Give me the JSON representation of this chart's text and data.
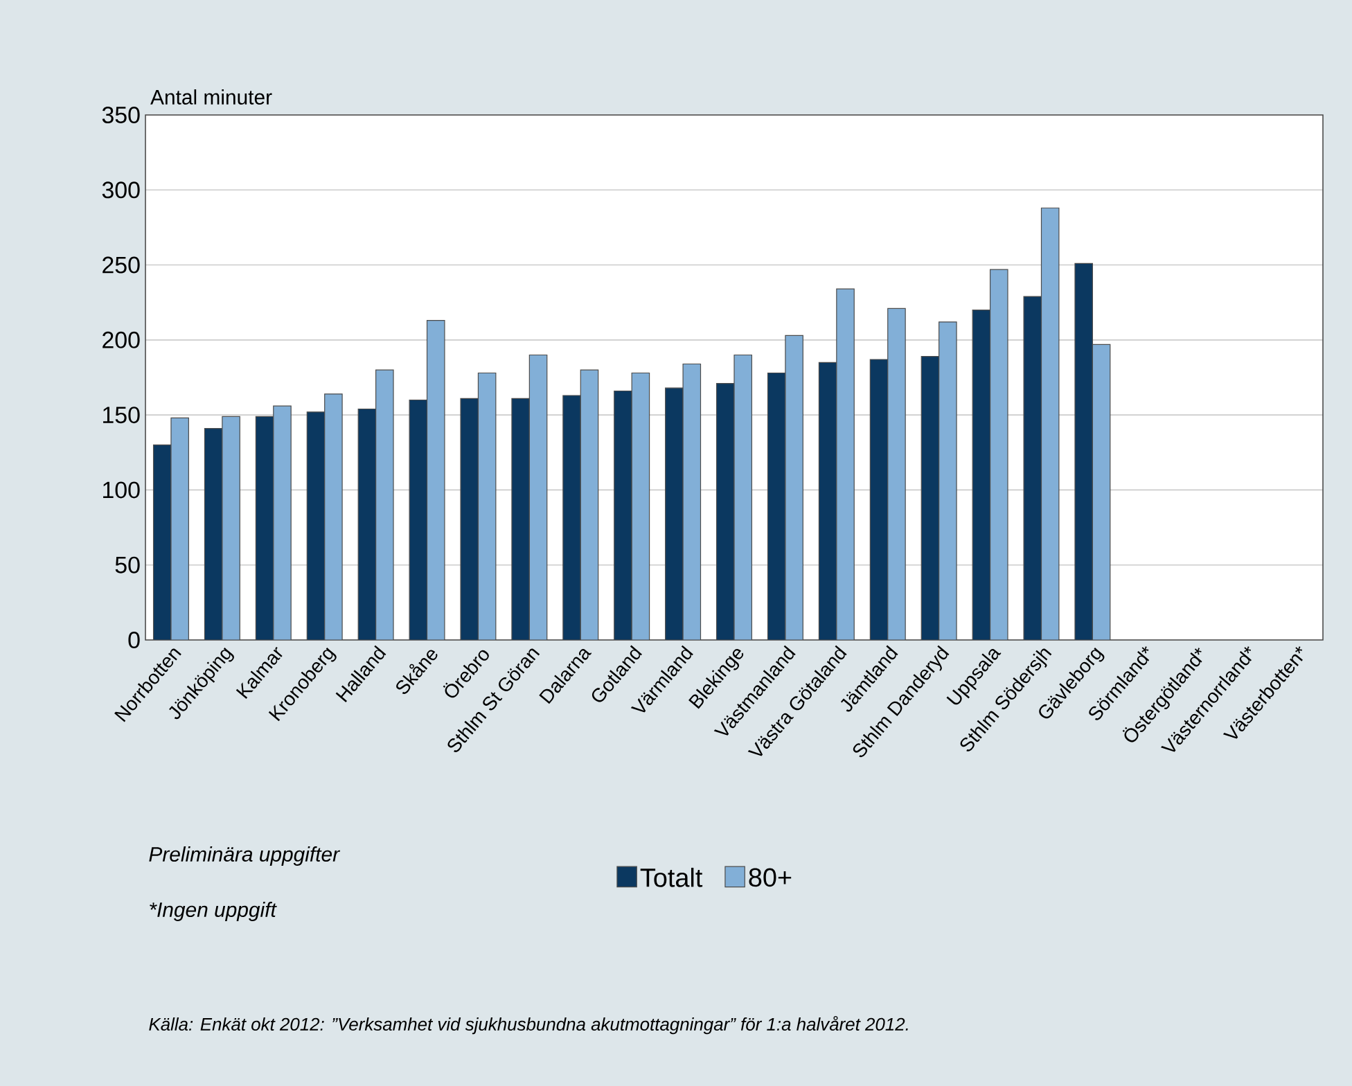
{
  "chart_data": {
    "type": "bar",
    "ylabel": "Antal minuter",
    "categories": [
      "Norrbotten",
      "Jönköping",
      "Kalmar",
      "Kronoberg",
      "Halland",
      "Skåne",
      "Örebro",
      "Sthlm St Göran",
      "Dalarna",
      "Gotland",
      "Värmland",
      "Blekinge",
      "Västmanland",
      "Västra Götaland",
      "Jämtland",
      "Sthlm Danderyd",
      "Uppsala",
      "Sthlm Södersjh",
      "Gävleborg",
      "Sörmland*",
      "Östergötland*",
      "Västernorrland*",
      "Västerbotten*"
    ],
    "series": [
      {
        "name": "Totalt",
        "color": "#0b3860",
        "values": [
          130,
          141,
          149,
          152,
          154,
          160,
          161,
          161,
          163,
          166,
          168,
          171,
          178,
          185,
          187,
          189,
          220,
          229,
          251,
          null,
          null,
          null,
          null
        ]
      },
      {
        "name": "80+",
        "color": "#82afd7",
        "values": [
          148,
          149,
          156,
          164,
          180,
          213,
          178,
          190,
          180,
          178,
          184,
          190,
          203,
          234,
          221,
          212,
          247,
          288,
          197,
          null,
          null,
          null,
          null
        ]
      }
    ],
    "ylim": [
      0,
      350
    ],
    "yticks": [
      0,
      50,
      100,
      150,
      200,
      250,
      300,
      350
    ],
    "grid": "y",
    "legend": "bottom",
    "annotations": [
      "Preliminära uppgifter",
      "*Ingen uppgift",
      "Källa: Enkät okt 2012: ”Verksamhet vid sjukhusbundna akutmottagningar” för 1:a halvåret 2012."
    ]
  }
}
